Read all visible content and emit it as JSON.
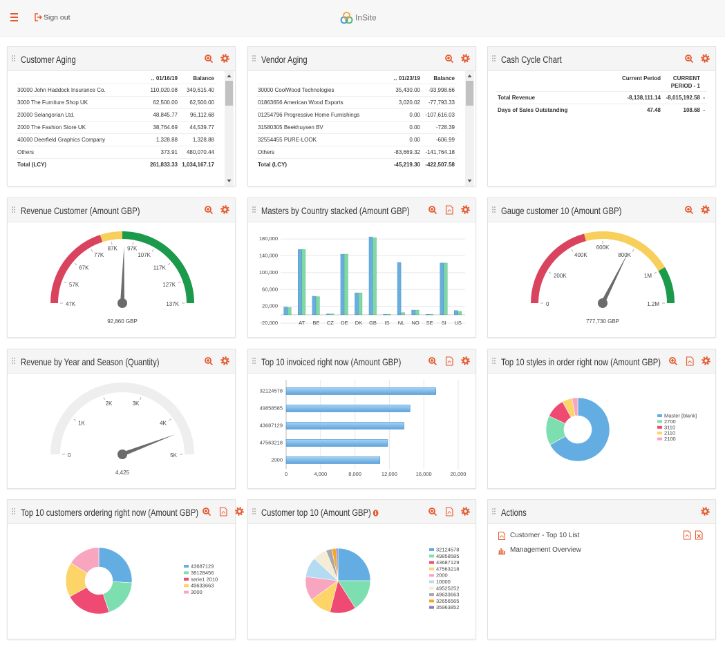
{
  "header": {
    "sign_out": "Sign out",
    "logo": "InSite"
  },
  "tables": [
    {
      "title": "Customer Aging",
      "columns": [
        "‥ 01/16/19",
        "Balance"
      ],
      "rows": [
        [
          "30000 John Haddock Insurance Co.",
          "110,020.08",
          "349,615.40"
        ],
        [
          "3000 The Furniture Shop UK",
          "62,500.00",
          "62,500.00"
        ],
        [
          "20000 Selangorian Ltd.",
          "48,845.77",
          "96,112.68"
        ],
        [
          "2000 The Fashion Store UK",
          "38,764.69",
          "44,539.77"
        ],
        [
          "40000 Deerfield Graphics Company",
          "1,328.88",
          "1,328.88"
        ],
        [
          "Others",
          "373.91",
          "480,070.44"
        ],
        [
          "Total (LCY)",
          "261,833.33",
          "1,034,167.17"
        ]
      ]
    },
    {
      "title": "Vendor Aging",
      "columns": [
        "‥ 01/23/19",
        "Balance"
      ],
      "rows": [
        [
          "30000 CoolWood Technologies",
          "35,430.00",
          "-93,998.66"
        ],
        [
          "01863656 American Wood Exports",
          "3,020.02",
          "-77,793.33"
        ],
        [
          "01254796 Progressive Home Furnishings",
          "0.00",
          "-107,616.03"
        ],
        [
          "31580305 Beekhuysen BV",
          "0.00",
          "-728.39"
        ],
        [
          "32554455 PURE-LOOK",
          "0.00",
          "-606.99"
        ],
        [
          "Others",
          "-83,669.32",
          "-141,764.18"
        ],
        [
          "Total (LCY)",
          "-45,219.30",
          "-422,507.58"
        ]
      ]
    },
    {
      "title": "Cash Cycle Chart",
      "columns": [
        "Current Period",
        "CURRENT PERIOD - 1"
      ],
      "rows": [
        [
          "Total Revenue",
          "-8,138,111.14",
          "-8,015,192.58",
          "-"
        ],
        [
          "Days of Sales Outstanding",
          "47.48",
          "108.68",
          "-"
        ]
      ]
    }
  ],
  "chart_data": [
    {
      "type": "gauge",
      "title": "Revenue Customer (Amount GBP)",
      "ylim": [
        47000,
        137000
      ],
      "yticks": [
        {
          "value": 47000,
          "label": "47K"
        },
        {
          "value": 57000,
          "label": "57K"
        },
        {
          "value": 67000,
          "label": "67K"
        },
        {
          "value": 77000,
          "label": "77K"
        },
        {
          "value": 87000,
          "label": "87K"
        },
        {
          "value": 97000,
          "label": "97K"
        },
        {
          "value": 107000,
          "label": "107K"
        },
        {
          "value": 117000,
          "label": "117K"
        },
        {
          "value": 127000,
          "label": "127K"
        },
        {
          "value": 137000,
          "label": "137K"
        }
      ],
      "bands": [
        {
          "from": 47000,
          "to": 83000,
          "color": "#d9435e"
        },
        {
          "from": 83000,
          "to": 92000,
          "color": "#f7cf5a"
        },
        {
          "from": 92000,
          "to": 137000,
          "color": "#1a9a4a"
        }
      ],
      "value": 92860,
      "value_label": "92,860 GBP",
      "needle_color": "#6b6b6b"
    },
    {
      "type": "bar",
      "title": "Masters by Country stacked (Amount GBP)",
      "categories": [
        null,
        "AT",
        "BE",
        "CZ",
        "DE",
        "DK",
        "GB",
        "IS",
        "NL",
        "NO",
        "SE",
        "SI",
        "US"
      ],
      "series": [
        {
          "color": "#6aaee0",
          "values": [
            18000,
            155000,
            44000,
            2000,
            144000,
            52000,
            185000,
            1000,
            124000,
            11000,
            1000,
            123000,
            10000
          ]
        },
        {
          "color": "#7ed9a6",
          "values": [
            17000,
            155000,
            43000,
            2000,
            144000,
            52000,
            183000,
            1000,
            5000,
            11000,
            1000,
            123000,
            8000
          ]
        }
      ],
      "ylim": [
        -20000,
        200000
      ],
      "yticks": [
        {
          "value": -20000,
          "label": "-20,000"
        },
        {
          "value": 20000,
          "label": "20,000"
        },
        {
          "value": 60000,
          "label": "60,000"
        },
        {
          "value": 100000,
          "label": "100,000"
        },
        {
          "value": 140000,
          "label": "140,000"
        },
        {
          "value": 180000,
          "label": "180,000"
        }
      ],
      "grid": true
    },
    {
      "type": "gauge",
      "title": "Gauge customer 10 (Amount GBP)",
      "ylim": [
        0,
        1200000
      ],
      "yticks": [
        0,
        {
          "value": 200000,
          "label": "200K"
        },
        {
          "value": 400000,
          "label": "400K"
        },
        {
          "value": 600000,
          "label": "600K"
        },
        {
          "value": 800000,
          "label": "800K"
        },
        {
          "value": 1000000,
          "label": "1M"
        },
        {
          "value": 1200000,
          "label": "1.2M"
        }
      ],
      "bands": [
        {
          "from": 0,
          "to": 500000,
          "color": "#d9435e"
        },
        {
          "from": 500000,
          "to": 1000000,
          "color": "#f7cf5a"
        },
        {
          "from": 1000000,
          "to": 1200000,
          "color": "#1a9a4a"
        }
      ],
      "value": 777730,
      "value_label": "777,730 GBP",
      "needle_color": "#6b6b6b"
    },
    {
      "type": "gauge",
      "title": "Revenue by Year and Season (Quantity)",
      "ylim": [
        0,
        5000
      ],
      "yticks": [
        0,
        {
          "value": 1000,
          "label": "1K"
        },
        {
          "value": 2000,
          "label": "2K"
        },
        {
          "value": 3000,
          "label": "3K"
        },
        {
          "value": 4000,
          "label": "4K"
        },
        {
          "value": 5000,
          "label": "5K"
        }
      ],
      "bands": [
        {
          "from": 0,
          "to": 5000,
          "color": "#eeeeee"
        }
      ],
      "value": 4425,
      "value_label": "4,425",
      "needle_color": "#6b6b6b"
    },
    {
      "type": "hbar",
      "title": "Top 10 invoiced right now (Amount GBP)",
      "categories": [
        "32124578",
        "49858585",
        "43687129",
        "47563218",
        "2000"
      ],
      "values": [
        17400,
        14400,
        13700,
        11800,
        10900
      ],
      "color": "#6aaee0",
      "xlim": [
        0,
        20000
      ],
      "xticks": [
        0,
        {
          "value": 4000,
          "label": "4,000"
        },
        {
          "value": 8000,
          "label": "8,000"
        },
        {
          "value": 12000,
          "label": "12,000"
        },
        {
          "value": 16000,
          "label": "16,000"
        },
        {
          "value": 20000,
          "label": "20,000"
        }
      ],
      "grid": true
    },
    {
      "type": "donut",
      "title": "Top 10 styles in order right now (Amount GBP)",
      "categories": [
        "Master [blank]",
        "2700",
        "3110",
        "2110",
        "2100"
      ],
      "values": [
        67,
        15,
        10,
        5,
        3
      ],
      "colors": [
        "#64ade3",
        "#7ddfb0",
        "#ef4b72",
        "#fdd467",
        "#f8a6c0"
      ]
    },
    {
      "type": "donut",
      "title": "Top 10 customers ordering right now (Amount GBP)",
      "categories": [
        "43687129",
        "38128456",
        "serie1 2010",
        "49633663",
        "3000"
      ],
      "values": [
        26,
        19,
        22,
        17,
        16
      ],
      "colors": [
        "#64ade3",
        "#7ddfb0",
        "#ef4b72",
        "#fdd467",
        "#f8a6c0"
      ]
    },
    {
      "type": "pie",
      "title": "Customer top 10 (Amount GBP)",
      "categories": [
        "32124578",
        "49858585",
        "43687129",
        "47563218",
        "2000",
        "10000",
        "49525252",
        "49633663",
        "32656565",
        "35963852"
      ],
      "values": [
        25,
        16,
        13,
        11,
        12,
        10,
        7,
        3,
        2,
        1
      ],
      "colors": [
        "#64ade3",
        "#7ddfb0",
        "#ef4b72",
        "#fdd467",
        "#f8a6c0",
        "#b3dcf3",
        "#f5ecd5",
        "#a9a9a9",
        "#f5a623",
        "#8e7cc3"
      ]
    }
  ],
  "actions": {
    "title": "Actions",
    "items": [
      "Customer - Top 10 List",
      "Management Overview"
    ]
  }
}
